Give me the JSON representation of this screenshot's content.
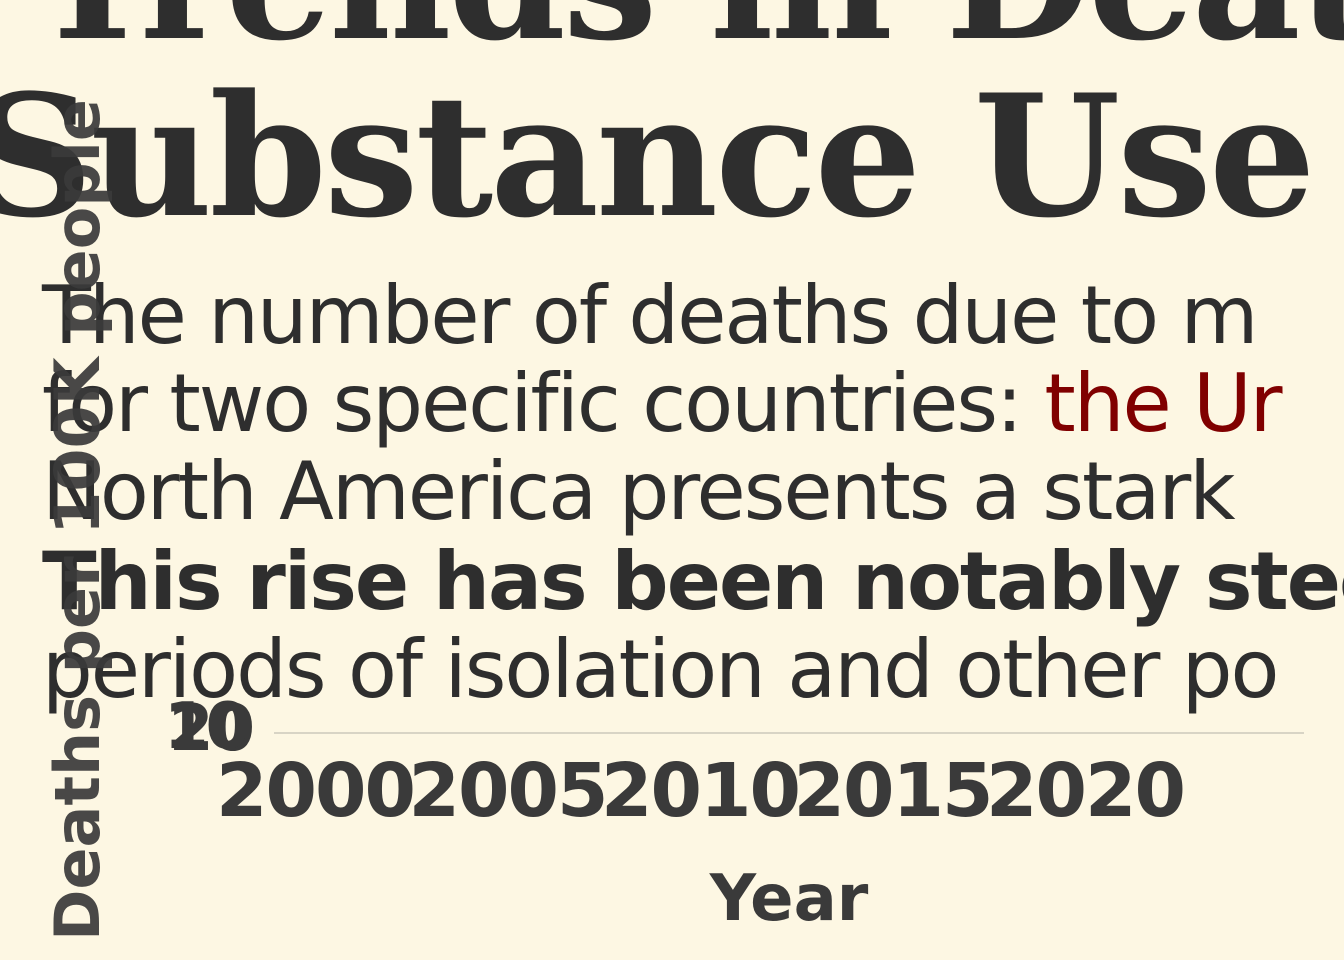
{
  "chart_data": {
    "type": "line",
    "title_lines": [
      "Trends in Deaths",
      "Substance Use Dis"
    ],
    "subtitle": {
      "line1": "The number of deaths due to m",
      "line2_prefix": "for two specific countries: ",
      "line2_highlight": "the Ur",
      "line3": "North America presents a stark",
      "line4": "This rise has been notably stee",
      "line5": "periods of isolation and other po"
    },
    "xlabel": "Year",
    "ylabel": "Deaths per 100K people",
    "x_ticks": [
      "2000",
      "2005",
      "2010",
      "2015",
      "2020"
    ],
    "y_ticks": [
      "20",
      "10"
    ],
    "xlim": [
      1997,
      2022
    ],
    "ylim": [
      0,
      30
    ],
    "grid": true,
    "highlight_color": "#800000",
    "text_color": "#2e2e2e",
    "background_color": "#fdf7e3",
    "series": []
  }
}
